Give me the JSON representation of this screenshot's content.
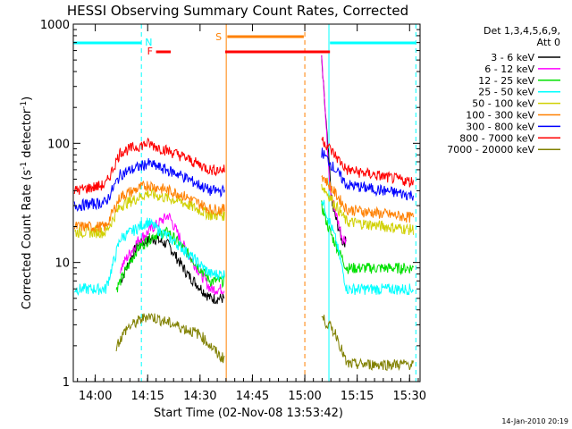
{
  "chart_data": {
    "type": "line",
    "title": "HESSI Observing Summary Count Rates, Corrected",
    "xlabel": "Start Time (02-Nov-08 13:53:42)",
    "ylabel_main": "Corrected Count Rate (s",
    "ylabel_exp1": "-1",
    "ylabel_mid": " detector",
    "ylabel_exp2": "-1",
    "ylabel_end": ")",
    "ylabel": "Corrected Count Rate (s-1 detector-1)",
    "y_scale": "log",
    "x_range_min": [
      13.895,
      15.55
    ],
    "ylim": [
      1,
      1000
    ],
    "x_ticks": [
      {
        "label": "14:00",
        "t": 14.0
      },
      {
        "label": "14:15",
        "t": 14.25
      },
      {
        "label": "14:30",
        "t": 14.5
      },
      {
        "label": "14:45",
        "t": 14.75
      },
      {
        "label": "15:00",
        "t": 15.0
      },
      {
        "label": "15:15",
        "t": 15.25
      },
      {
        "label": "15:30",
        "t": 15.5
      }
    ],
    "y_ticks": [
      {
        "label": "1",
        "v": 1
      },
      {
        "label": "10",
        "v": 10
      },
      {
        "label": "100",
        "v": 100
      },
      {
        "label": "1000",
        "v": 1000
      }
    ],
    "legend_header": [
      "Det 1,3,4,5,6,9,",
      "Att 0"
    ],
    "legend_position": "right",
    "series": [
      {
        "name": "3 - 6 keV",
        "color": "#000000",
        "pre": [
          4,
          60
        ],
        "post": [
          [
            15.08,
            500
          ],
          [
            15.13,
            30
          ],
          [
            15.18,
            15
          ]
        ],
        "x": [
          14.12,
          14.2,
          14.28,
          14.35,
          14.44,
          14.55
        ],
        "y": [
          7,
          14,
          16,
          14,
          8,
          5
        ]
      },
      {
        "name": "6 - 12 keV",
        "color": "#ff00ff",
        "x": [
          14.12,
          14.2,
          14.28,
          14.35,
          14.44,
          14.55
        ],
        "y": [
          9,
          15,
          20,
          25,
          12,
          6
        ],
        "post": [
          [
            15.08,
            600
          ],
          [
            15.12,
            40
          ],
          [
            15.18,
            16
          ]
        ]
      },
      {
        "name": "12 - 25 keV",
        "color": "#00e000",
        "x": [
          14.1,
          14.2,
          14.28,
          14.35,
          14.44,
          14.55
        ],
        "y": [
          6,
          13,
          17,
          18,
          12,
          7
        ],
        "post": [
          [
            15.08,
            30
          ],
          [
            15.12,
            18
          ],
          [
            15.2,
            9
          ]
        ]
      },
      {
        "name": "25 - 50 keV",
        "color": "#00ffff",
        "x": [
          13.9,
          14.05,
          14.12,
          14.25,
          14.4,
          14.55
        ],
        "y": [
          6,
          6,
          16,
          22,
          14,
          8
        ],
        "post": [
          [
            15.08,
            35
          ],
          [
            15.15,
            15
          ],
          [
            15.2,
            6
          ],
          [
            15.5,
            6
          ]
        ]
      },
      {
        "name": "50 - 100 keV",
        "color": "#d0d000",
        "x": [
          13.9,
          14.05,
          14.12,
          14.25,
          14.4,
          14.55
        ],
        "y": [
          18,
          18,
          30,
          38,
          33,
          25
        ],
        "post": [
          [
            15.08,
            45
          ],
          [
            15.2,
            22
          ],
          [
            15.5,
            19
          ]
        ]
      },
      {
        "name": "100 - 300 keV",
        "color": "#ff8000",
        "x": [
          13.9,
          14.05,
          14.12,
          14.25,
          14.4,
          14.55
        ],
        "y": [
          20,
          20,
          36,
          45,
          38,
          28
        ],
        "post": [
          [
            15.08,
            55
          ],
          [
            15.2,
            28
          ],
          [
            15.5,
            24
          ]
        ]
      },
      {
        "name": "300 - 800 keV",
        "color": "#0000ff",
        "x": [
          13.9,
          14.05,
          14.12,
          14.25,
          14.4,
          14.55
        ],
        "y": [
          30,
          32,
          55,
          68,
          55,
          40
        ],
        "post": [
          [
            15.08,
            85
          ],
          [
            15.2,
            45
          ],
          [
            15.5,
            37
          ]
        ]
      },
      {
        "name": "800 - 7000 keV",
        "color": "#ff0000",
        "x": [
          13.9,
          14.05,
          14.12,
          14.25,
          14.4,
          14.55
        ],
        "y": [
          40,
          45,
          85,
          100,
          80,
          60
        ],
        "post": [
          [
            15.08,
            110
          ],
          [
            15.2,
            60
          ],
          [
            15.5,
            48
          ]
        ]
      },
      {
        "name": "7000 - 20000 keV",
        "color": "#808000",
        "x": [
          14.1,
          14.15,
          14.25,
          14.38,
          14.5,
          14.6
        ],
        "y": [
          2,
          2.8,
          3.6,
          3,
          2.5,
          1.6
        ],
        "post": [
          [
            15.08,
            3.5
          ],
          [
            15.15,
            2.5
          ],
          [
            15.2,
            1.4
          ]
        ]
      }
    ],
    "annotations": [
      {
        "label": "N",
        "color": "#00ffff"
      },
      {
        "label": "F",
        "color": "#ff0000"
      },
      {
        "label": "S",
        "color": "#ff8000"
      }
    ],
    "timestamp": "14-Jan-2010 20:19"
  }
}
